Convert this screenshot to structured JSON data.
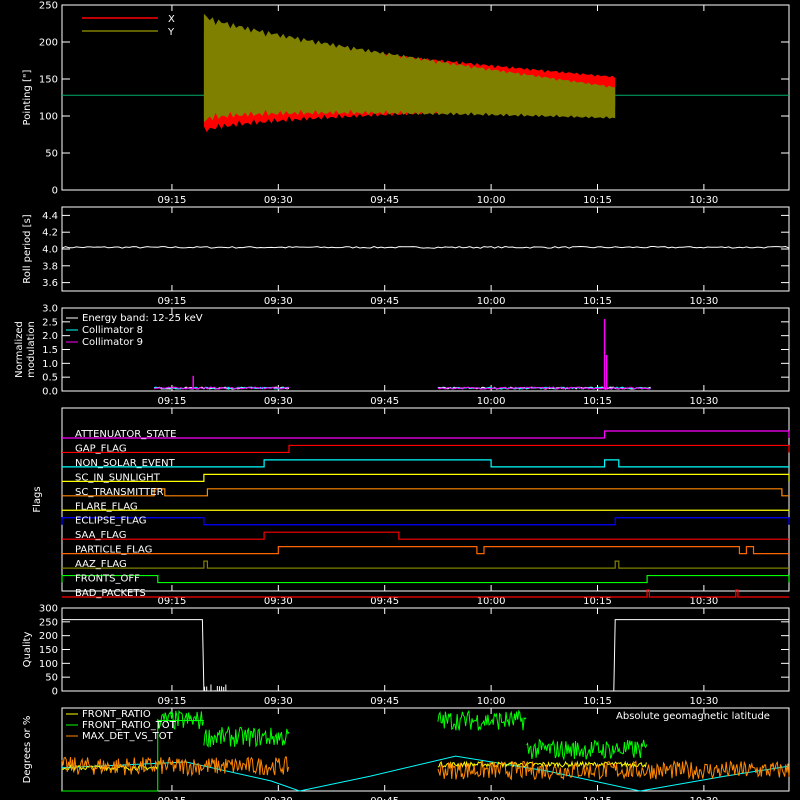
{
  "time_axis": {
    "ticks": [
      "09:15",
      "09:30",
      "09:45",
      "10:00",
      "10:15",
      "10:30"
    ],
    "tick_minutes": [
      555,
      570,
      585,
      600,
      615,
      630
    ],
    "range_minutes": [
      539.5,
      642
    ]
  },
  "colors": {
    "background": "#000000",
    "axes": "#ffffff",
    "red": "#ff0000",
    "olive": "#808000",
    "white": "#ffffff",
    "cyan": "#00ffff",
    "magenta": "#ff00ff",
    "green": "#00ff00",
    "yellow": "#ffff00",
    "orange": "#ff8800",
    "blue": "#0000ff",
    "dark_orange": "#ff6600"
  },
  "chart_data": [
    {
      "type": "area",
      "ylabel": "Pointing [\"]",
      "ylim": [
        0,
        250
      ],
      "yticks": [
        0,
        50,
        100,
        150,
        200,
        250
      ],
      "legend": [
        {
          "name": "X",
          "color": "#ff0000"
        },
        {
          "name": "Y",
          "color": "#808000"
        }
      ],
      "baseline": {
        "y": 128,
        "color": "#00aa66"
      },
      "data_interval_minutes": [
        559.5,
        617.5
      ],
      "series": [
        {
          "name": "X",
          "center_start": 150,
          "center_end": 132,
          "halfwidth_start": 75,
          "halfwidth_end": 22
        },
        {
          "name": "Y",
          "center_start": 165,
          "center_end": 118,
          "halfwidth_start": 75,
          "halfwidth_end": 22
        }
      ]
    },
    {
      "type": "line",
      "ylabel": "Roll period [s]",
      "ylim": [
        3.5,
        4.5
      ],
      "yticks": [
        "3.6",
        "3.8",
        "4.0",
        "4.2",
        "4.4"
      ],
      "ytick_values": [
        3.6,
        3.8,
        4.0,
        4.2,
        4.4
      ],
      "series": [
        {
          "name": "",
          "value": 4.02,
          "color": "#ffffff"
        }
      ]
    },
    {
      "type": "line",
      "ylabel": "Normalized modulation",
      "ylabel_lines": [
        "Normalized",
        "modulation"
      ],
      "ylim": [
        0,
        3
      ],
      "yticks": [
        "0.0",
        "0.5",
        "1.0",
        "1.5",
        "2.0",
        "2.5",
        "3.0"
      ],
      "ytick_values": [
        0,
        0.5,
        1,
        1.5,
        2,
        2.5,
        3
      ],
      "legend": [
        {
          "name": "Energy band: 12-25 keV",
          "color": "#ffffff"
        },
        {
          "name": "Collimator 8",
          "color": "#00ffff"
        },
        {
          "name": "Collimator 9",
          "color": "#ff00ff"
        }
      ],
      "segments_minutes": [
        [
          552.5,
          571.5
        ],
        [
          592.5,
          622.5
        ]
      ],
      "baseline_value": 0.07,
      "spikes": [
        {
          "x": 558.0,
          "value": 0.55,
          "color": "#ff00ff"
        },
        {
          "x": 616.0,
          "value": 2.6,
          "color": "#ff00ff"
        },
        {
          "x": 616.3,
          "value": 1.3,
          "color": "#ff00ff"
        },
        {
          "x": 563.0,
          "value": 0.15,
          "color": "#00ffff"
        }
      ]
    },
    {
      "type": "step",
      "ylabel": "Flags",
      "flags": [
        {
          "name": "ATTENUATOR_STATE",
          "color": "#ff00ff",
          "high": [
            [
              616,
              642
            ]
          ]
        },
        {
          "name": "GAP_FLAG",
          "color": "#ff0000",
          "high": [
            [
              571.5,
              642
            ]
          ]
        },
        {
          "name": "NON_SOLAR_EVENT",
          "color": "#00ffff",
          "high": [
            [
              568,
              600
            ],
            [
              616,
              618
            ]
          ]
        },
        {
          "name": "SC_IN_SUNLIGHT",
          "color": "#ffff00",
          "high": [
            [
              559.5,
              642
            ]
          ]
        },
        {
          "name": "SC_TRANSMITTER",
          "color": "#ff8800",
          "high": [
            [
              552.5,
              554
            ],
            [
              560,
              641
            ]
          ]
        },
        {
          "name": "FLARE_FLAG",
          "color": "#ffff00",
          "high": []
        },
        {
          "name": "ECLIPSE_FLAG",
          "color": "#0000ff",
          "high": [
            [
              539.5,
              559.5
            ],
            [
              617.5,
              642
            ]
          ]
        },
        {
          "name": "SAA_FLAG",
          "color": "#ff0000",
          "high": [
            [
              568,
              587
            ]
          ]
        },
        {
          "name": "PARTICLE_FLAG",
          "color": "#ff6600",
          "high": [
            [
              570,
              598
            ],
            [
              599,
              635
            ],
            [
              636,
              637
            ]
          ]
        },
        {
          "name": "AAZ_FLAG",
          "color": "#808000",
          "high": [
            [
              559.5,
              560
            ],
            [
              617.5,
              618
            ]
          ]
        },
        {
          "name": "FRONTS_OFF",
          "color": "#00ff00",
          "high": [
            [
              539.5,
              553
            ],
            [
              622,
              642
            ]
          ]
        },
        {
          "name": "BAD_PACKETS",
          "color": "#ff0000",
          "high": [
            [
              622,
              622.3
            ],
            [
              634.5,
              634.8
            ]
          ]
        }
      ]
    },
    {
      "type": "line",
      "ylabel": "Quality",
      "ylim": [
        0,
        300
      ],
      "yticks": [
        0,
        50,
        100,
        150,
        200,
        250,
        300
      ],
      "series": [
        {
          "name": "",
          "color": "#ffffff",
          "points": [
            [
              539.5,
              258
            ],
            [
              559.3,
              258
            ],
            [
              559.5,
              0
            ],
            [
              617.3,
              0
            ],
            [
              617.5,
              258
            ],
            [
              642,
              258
            ]
          ]
        }
      ]
    },
    {
      "type": "line",
      "ylabel": "Degrees or %",
      "ylim": [
        0,
        100
      ],
      "legend": [
        {
          "name": "FRONT_RATIO",
          "color": "#ffff00"
        },
        {
          "name": "FRONT_RATIO_TOT",
          "color": "#00ff00"
        },
        {
          "name": "MAX_DET_VS_TOT",
          "color": "#ff8800"
        }
      ],
      "annotation": {
        "text": "Absolute geomagnetic latitude",
        "color": "#00ffff"
      },
      "latitude_curve": [
        [
          539.5,
          28
        ],
        [
          557,
          35
        ],
        [
          569,
          12
        ],
        [
          573,
          0
        ],
        [
          583,
          18
        ],
        [
          595,
          42
        ],
        [
          608,
          24
        ],
        [
          621,
          0
        ],
        [
          633,
          18
        ],
        [
          642,
          30
        ]
      ],
      "green_segments": [
        [
          553,
          559.5,
          85
        ],
        [
          559.5,
          571.5,
          65
        ],
        [
          592.5,
          605,
          85
        ],
        [
          605,
          622,
          50
        ]
      ],
      "orange_segments": [
        [
          539.5,
          571.5,
          30
        ],
        [
          592.5,
          642,
          25
        ]
      ],
      "yellow_segments": [
        [
          539.5,
          553,
          28
        ],
        [
          592.5,
          622,
          32
        ]
      ]
    }
  ]
}
